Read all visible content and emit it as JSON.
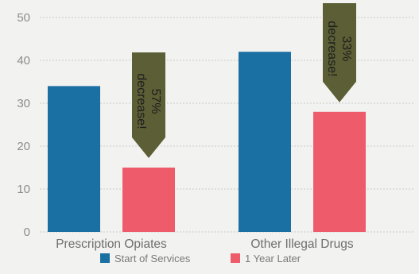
{
  "chart_data": {
    "type": "bar",
    "categories": [
      "Prescription Opiates",
      "Other Illegal Drugs"
    ],
    "series": [
      {
        "name": "Start of Services",
        "color": "#1a6fa3",
        "values": [
          34,
          42
        ]
      },
      {
        "name": "1 Year Later",
        "color": "#ee5c6c",
        "values": [
          15,
          28
        ]
      }
    ],
    "ylim": [
      0,
      50
    ],
    "yticks": [
      0,
      10,
      20,
      30,
      40,
      50
    ],
    "grid": true,
    "legend": "bottom",
    "annotations": [
      {
        "category_index": 0,
        "line1": "57%",
        "line2": "decrease!"
      },
      {
        "category_index": 1,
        "line1": "33%",
        "line2": "decrease!"
      }
    ],
    "annotation_color": "#5c5e35"
  }
}
